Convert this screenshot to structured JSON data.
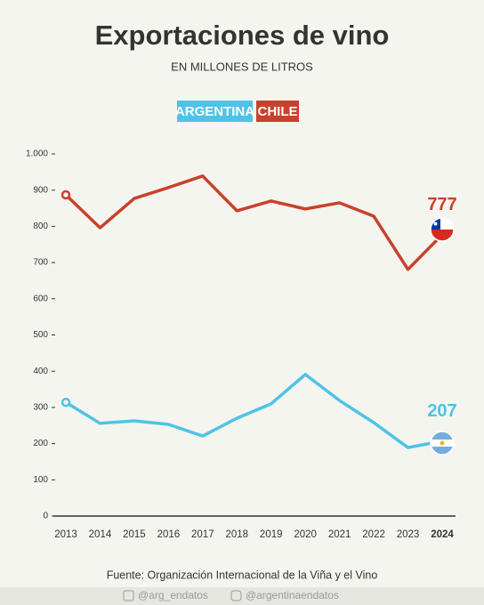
{
  "chart_data": {
    "type": "line",
    "title": "Exportaciones de vino",
    "subtitle": "EN MILLONES DE LITROS",
    "categories": [
      "2013",
      "2014",
      "2015",
      "2016",
      "2017",
      "2018",
      "2019",
      "2020",
      "2021",
      "2022",
      "2023",
      "2024"
    ],
    "series": [
      {
        "name": "ARGENTINA",
        "color": "#4ec3e6",
        "values": [
          314,
          256,
          263,
          253,
          221,
          270,
          310,
          391,
          319,
          258,
          189,
          207
        ]
      },
      {
        "name": "CHILE",
        "color": "#c9412b",
        "values": [
          887,
          796,
          877,
          907,
          939,
          843,
          870,
          848,
          865,
          828,
          681,
          777
        ]
      }
    ],
    "ylim": [
      0,
      1000
    ],
    "yticks": [
      0,
      100,
      200,
      300,
      400,
      500,
      600,
      700,
      800,
      900,
      {
        "value": 1000,
        "label": "1.000"
      }
    ],
    "source": "Fuente: Organización Internacional de la Viña y el Vino",
    "footer": [
      "@arg_endatos",
      "@argentinaendatos"
    ]
  }
}
